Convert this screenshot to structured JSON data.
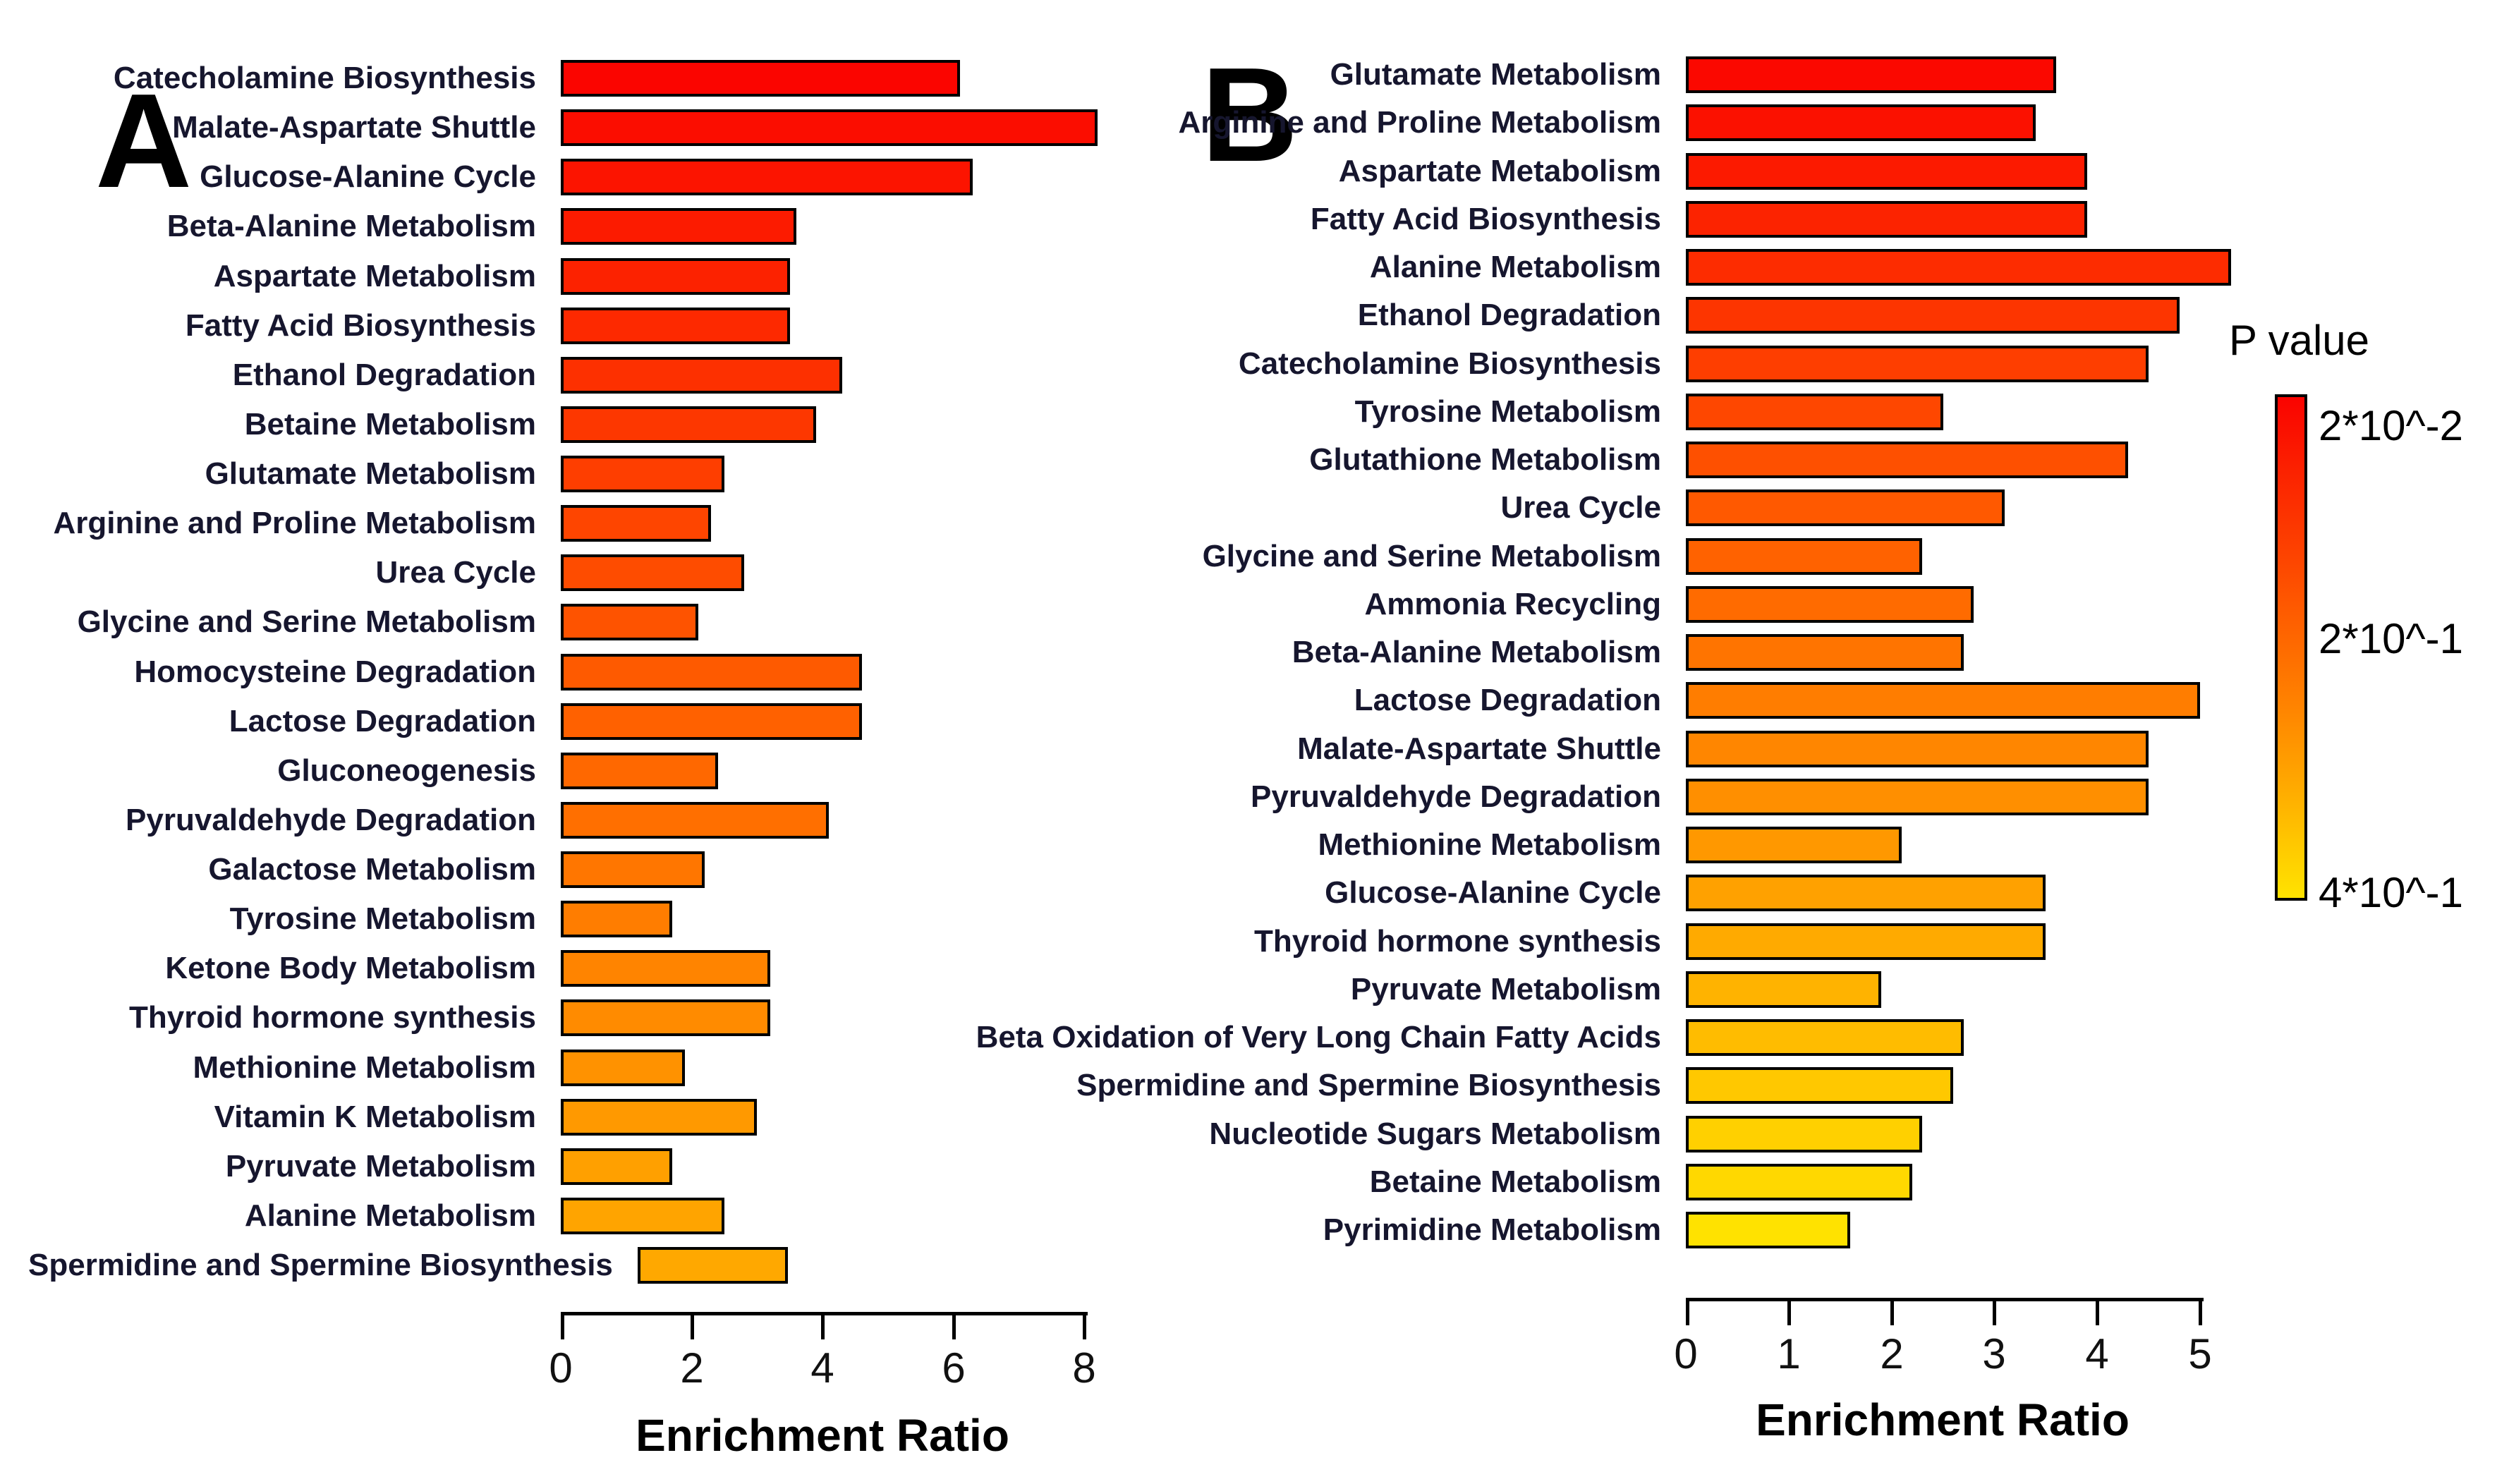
{
  "background_color": "#ffffff",
  "chart_data": [
    {
      "type": "bar",
      "panel_label": "A",
      "orientation": "horizontal",
      "xlabel": "Enrichment Ratio",
      "ylabel": "",
      "xlim": [
        0,
        8
      ],
      "xticks": [
        "0",
        "2",
        "4",
        "6",
        "8"
      ],
      "grid": false,
      "bar_outline_color": "#000000",
      "categories": [
        "Catecholamine Biosynthesis",
        "Malate-Aspartate Shuttle",
        "Glucose-Alanine Cycle",
        "Beta-Alanine Metabolism",
        "Aspartate Metabolism",
        "Fatty Acid Biosynthesis",
        "Ethanol Degradation",
        "Betaine Metabolism",
        "Glutamate Metabolism",
        "Arginine and Proline Metabolism",
        "Urea Cycle",
        "Glycine and Serine Metabolism",
        "Homocysteine Degradation",
        "Lactose Degradation",
        "Gluconeogenesis",
        "Pyruvaldehyde Degradation",
        "Galactose Metabolism",
        "Tyrosine Metabolism",
        "Ketone Body Metabolism",
        "Thyroid hormone synthesis",
        "Methionine Metabolism",
        "Vitamin K Metabolism",
        "Pyruvate Metabolism",
        "Alanine Metabolism",
        "Spermidine and Spermine Biosynthesis"
      ],
      "values": [
        6.1,
        8.2,
        6.3,
        3.6,
        3.5,
        3.5,
        4.3,
        3.9,
        2.5,
        2.3,
        2.8,
        2.1,
        4.6,
        4.6,
        2.4,
        4.1,
        2.2,
        1.7,
        3.2,
        3.2,
        1.9,
        3.0,
        1.7,
        2.5,
        2.3
      ],
      "bar_colors": [
        "#fb0500",
        "#fb0d00",
        "#fc1400",
        "#fc1b00",
        "#fc2200",
        "#fd2900",
        "#fd3000",
        "#fd3700",
        "#fe3e00",
        "#fe4500",
        "#fe4c00",
        "#fe5300",
        "#fe5a00",
        "#ff6100",
        "#ff6800",
        "#ff6f00",
        "#ff7600",
        "#ff7d00",
        "#ff8400",
        "#ff8b00",
        "#ff9200",
        "#ff9900",
        "#ffa000",
        "#ffa400",
        "#ffa800"
      ]
    },
    {
      "type": "bar",
      "panel_label": "B",
      "orientation": "horizontal",
      "xlabel": "Enrichment Ratio",
      "ylabel": "",
      "xlim": [
        0,
        5
      ],
      "xticks": [
        "0",
        "1",
        "2",
        "3",
        "4",
        "5"
      ],
      "grid": false,
      "bar_outline_color": "#000000",
      "categories": [
        "Glutamate Metabolism",
        "Arginine and Proline Metabolism",
        "Aspartate Metabolism",
        "Fatty Acid Biosynthesis",
        "Alanine Metabolism",
        "Ethanol Degradation",
        "Catecholamine Biosynthesis",
        "Tyrosine Metabolism",
        "Glutathione Metabolism",
        "Urea Cycle",
        "Glycine and Serine Metabolism",
        "Ammonia Recycling",
        "Beta-Alanine Metabolism",
        "Lactose Degradation",
        "Malate-Aspartate Shuttle",
        "Pyruvaldehyde Degradation",
        "Methionine Metabolism",
        "Glucose-Alanine Cycle",
        "Thyroid hormone synthesis",
        "Pyruvate Metabolism",
        "Beta Oxidation of Very Long Chain Fatty Acids",
        "Spermidine and Spermine Biosynthesis",
        "Nucleotide Sugars Metabolism",
        "Betaine Metabolism",
        "Pyrimidine Metabolism"
      ],
      "values": [
        3.6,
        3.4,
        3.9,
        3.9,
        5.3,
        4.8,
        4.5,
        2.5,
        4.3,
        3.1,
        2.3,
        2.8,
        2.7,
        5.0,
        4.5,
        4.5,
        2.1,
        3.5,
        3.5,
        1.9,
        2.7,
        2.6,
        2.3,
        2.2,
        1.6
      ],
      "bar_colors": [
        "#fb0800",
        "#fb1100",
        "#fc1a00",
        "#fc2300",
        "#fd2c00",
        "#fd3500",
        "#fe3e00",
        "#fe4700",
        "#fe5000",
        "#ff5900",
        "#ff6200",
        "#ff6b00",
        "#ff7400",
        "#ff7d00",
        "#ff8600",
        "#ff8f00",
        "#ff9800",
        "#ffa100",
        "#ffaa00",
        "#ffb300",
        "#ffbc00",
        "#ffc800",
        "#ffd000",
        "#ffd800",
        "#ffe200"
      ]
    }
  ],
  "legend": {
    "title": "P value",
    "tick_labels": [
      "2*10^-2",
      "2*10^-1",
      "4*10^-1"
    ],
    "orientation": "vertical",
    "gradient_stops": [
      "#fa0300",
      "#fd4400",
      "#ff8400",
      "#ffc700",
      "#ffe300"
    ]
  }
}
